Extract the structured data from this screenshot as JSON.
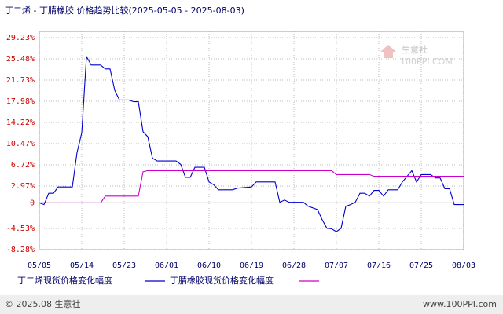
{
  "chart_data": {
    "type": "line",
    "title": "丁二烯 - 丁腈橡胶 价格趋势比较(2025-05-05 - 2025-08-03)",
    "x_format": "MM/DD",
    "xlim": [
      "05/05",
      "08/03"
    ],
    "xticks": [
      "05/05",
      "05/14",
      "05/23",
      "06/01",
      "06/10",
      "06/19",
      "06/28",
      "07/07",
      "07/16",
      "07/25",
      "08/03"
    ],
    "ylim": [
      -8.28,
      29.23
    ],
    "yticks": [
      {
        "value": 29.23,
        "label": "29.23%"
      },
      {
        "value": 25.48,
        "label": "25.48%"
      },
      {
        "value": 21.73,
        "label": "21.73%"
      },
      {
        "value": 17.98,
        "label": "17.98%"
      },
      {
        "value": 14.22,
        "label": "14.22%"
      },
      {
        "value": 10.47,
        "label": "10.47%"
      },
      {
        "value": 6.72,
        "label": "6.72%"
      },
      {
        "value": 2.97,
        "label": "2.97%"
      },
      0,
      {
        "value": -4.53,
        "label": "-4.53%"
      },
      {
        "value": -8.28,
        "label": "-8.28%"
      }
    ],
    "grid": true,
    "series": [
      {
        "name": "丁二烯现货价格变化幅度",
        "color": "#0000cc",
        "x": [
          "05/05",
          "05/06",
          "05/07",
          "05/08",
          "05/09",
          "05/12",
          "05/13",
          "05/14",
          "05/15",
          "05/16",
          "05/18",
          "05/19",
          "05/20",
          "05/21",
          "05/22",
          "05/24",
          "05/25",
          "05/26",
          "05/27",
          "05/28",
          "05/29",
          "05/30",
          "06/03",
          "06/04",
          "06/05",
          "06/06",
          "06/07",
          "06/09",
          "06/10",
          "06/11",
          "06/12",
          "06/15",
          "06/16",
          "06/19",
          "06/20",
          "06/24",
          "06/25",
          "06/26",
          "06/27",
          "06/30",
          "07/01",
          "07/03",
          "07/04",
          "07/05",
          "07/06",
          "07/07",
          "07/08",
          "07/09",
          "07/10",
          "07/11",
          "07/12",
          "07/13",
          "07/14",
          "07/15",
          "07/16",
          "07/17",
          "07/18",
          "07/20",
          "07/21",
          "07/23",
          "07/24",
          "07/25",
          "07/27",
          "07/28",
          "07/29",
          "07/30",
          "07/31",
          "08/01",
          "08/03"
        ],
        "values": [
          0,
          -0.3,
          1.7,
          1.7,
          2.8,
          2.8,
          8.9,
          12.4,
          25.9,
          24.4,
          24.4,
          23.7,
          23.7,
          19.9,
          18.2,
          18.2,
          17.9,
          17.9,
          12.6,
          11.7,
          7.9,
          7.4,
          7.4,
          6.8,
          4.5,
          4.5,
          6.3,
          6.3,
          3.7,
          3.2,
          2.3,
          2.3,
          2.6,
          2.8,
          3.7,
          3.7,
          0.1,
          0.5,
          0.1,
          0.1,
          -0.6,
          -1.2,
          -3.0,
          -4.5,
          -4.6,
          -5.1,
          -4.5,
          -0.6,
          -0.3,
          0.1,
          1.7,
          1.7,
          1.2,
          2.2,
          2.2,
          1.2,
          2.3,
          2.3,
          3.7,
          5.7,
          3.7,
          5.0,
          5.0,
          4.4,
          4.4,
          2.5,
          2.5,
          -0.3,
          -0.3
        ]
      },
      {
        "name": "丁腈橡胶现货价格变化幅度",
        "color": "#cc00cc",
        "x": [
          "05/05",
          "05/18",
          "05/19",
          "05/26",
          "05/27",
          "05/28",
          "07/06",
          "07/07",
          "07/14",
          "07/15",
          "08/03"
        ],
        "values": [
          0,
          0,
          1.2,
          1.2,
          5.5,
          5.7,
          5.7,
          5.0,
          5.0,
          4.7,
          4.7
        ]
      }
    ]
  },
  "watermark": {
    "name": "生意社",
    "url": "100PPI.COM"
  },
  "footer": {
    "copyright": "© 2025.08 生意社",
    "site": "www.100PPI.com"
  }
}
